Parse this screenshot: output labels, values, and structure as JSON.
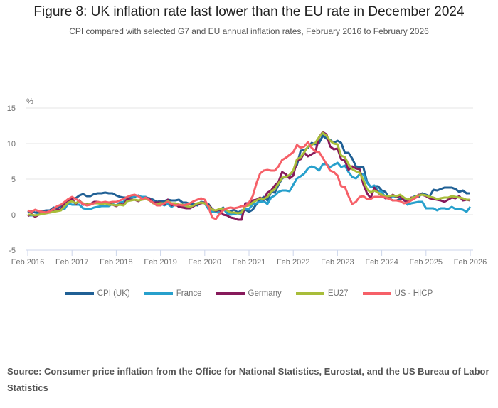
{
  "title": "Figure 8: UK inflation rate last lower than the EU rate in December 2024",
  "subtitle": "CPI compared with selected G7 and EU annual inflation rates, February 2016 to February 2026",
  "source": "Source: Consumer price inflation from the Office for National Statistics, Eurostat, and the US Bureau of Labor Statistics",
  "chart_data": {
    "type": "line",
    "ylabel": "%",
    "ylim": [
      -5,
      15
    ],
    "yticks": [
      15,
      10,
      5,
      0,
      -5
    ],
    "xticks": [
      "Feb 2016",
      "Feb 2017",
      "Feb 2018",
      "Feb 2019",
      "Feb 2020",
      "Feb 2021",
      "Feb 2022",
      "Feb 2023",
      "Feb 2024",
      "Feb 2025",
      "Feb 2026"
    ],
    "x_start": "Feb 2016",
    "x_frequency": "monthly",
    "grid": true,
    "legend": "bottom",
    "series": [
      {
        "name": "CPI (UK)",
        "color": "#206095",
        "values": [
          0.3,
          0.5,
          0.3,
          0.3,
          0.5,
          0.6,
          0.6,
          1.0,
          0.9,
          1.2,
          1.6,
          1.8,
          2.3,
          2.3,
          2.7,
          2.9,
          2.6,
          2.6,
          2.9,
          3.0,
          3.0,
          3.1,
          3.0,
          3.0,
          2.7,
          2.5,
          2.4,
          2.4,
          2.4,
          2.5,
          2.7,
          2.4,
          2.4,
          2.3,
          2.1,
          1.8,
          1.9,
          1.9,
          2.1,
          2.0,
          2.0,
          2.1,
          1.7,
          1.7,
          1.5,
          1.5,
          1.3,
          1.8,
          1.7,
          1.5,
          0.8,
          0.5,
          0.6,
          1.0,
          0.2,
          0.5,
          0.7,
          0.3,
          0.6,
          0.7,
          0.4,
          0.7,
          1.5,
          2.1,
          2.5,
          2.0,
          3.2,
          3.1,
          4.2,
          5.1,
          5.4,
          5.5,
          6.2,
          7.0,
          9.0,
          9.1,
          9.4,
          10.1,
          9.9,
          10.1,
          11.1,
          10.7,
          10.5,
          10.1,
          10.4,
          10.1,
          8.7,
          8.7,
          7.9,
          6.8,
          6.7,
          6.7,
          4.6,
          3.9,
          4.0,
          4.0,
          3.4,
          3.2,
          2.3,
          2.0,
          2.0,
          2.2,
          2.2,
          1.7,
          2.3,
          2.6,
          2.5,
          3.0,
          2.8,
          2.6,
          3.5,
          3.4,
          3.6,
          3.8,
          3.8,
          3.8,
          3.6,
          3.2,
          3.4,
          3.0,
          3.0
        ]
      },
      {
        "name": "France",
        "color": "#27a0cc",
        "values": [
          -0.1,
          -0.1,
          -0.1,
          0.1,
          0.3,
          0.4,
          0.4,
          0.5,
          0.5,
          0.7,
          0.8,
          1.6,
          1.4,
          1.4,
          1.4,
          0.9,
          0.8,
          0.8,
          1.0,
          1.1,
          1.2,
          1.2,
          1.2,
          1.5,
          1.3,
          1.7,
          1.8,
          2.3,
          2.3,
          2.6,
          2.6,
          2.5,
          2.5,
          2.2,
          1.9,
          1.4,
          1.6,
          1.3,
          1.5,
          1.1,
          1.4,
          1.3,
          1.3,
          1.1,
          0.9,
          1.2,
          1.6,
          1.7,
          1.6,
          0.8,
          0.4,
          0.4,
          0.2,
          0.9,
          0.2,
          0.0,
          0.1,
          0.2,
          0.0,
          0.8,
          0.8,
          1.4,
          1.6,
          1.8,
          1.9,
          1.5,
          2.4,
          2.7,
          3.2,
          3.4,
          3.4,
          3.3,
          4.2,
          5.1,
          5.4,
          5.8,
          6.5,
          6.8,
          6.6,
          6.2,
          7.1,
          7.1,
          6.7,
          7.0,
          7.3,
          6.7,
          6.9,
          6.0,
          5.3,
          5.1,
          5.7,
          5.7,
          4.5,
          3.9,
          4.1,
          3.4,
          3.2,
          2.4,
          2.4,
          2.6,
          2.5,
          2.7,
          2.2,
          1.4,
          1.6,
          1.7,
          1.8,
          1.8,
          0.9,
          0.9,
          0.9,
          0.6,
          0.9,
          0.9,
          0.8,
          1.1,
          0.8,
          0.8,
          0.7,
          0.4,
          1.1
        ]
      },
      {
        "name": "Germany",
        "color": "#871a5b",
        "values": [
          -0.2,
          0.1,
          -0.3,
          0.0,
          0.2,
          0.4,
          0.3,
          0.5,
          0.7,
          0.7,
          1.7,
          1.9,
          2.2,
          1.5,
          2.0,
          1.4,
          1.5,
          1.5,
          1.8,
          1.8,
          1.5,
          1.8,
          1.6,
          1.4,
          1.2,
          1.5,
          1.4,
          2.2,
          2.1,
          2.1,
          1.9,
          2.2,
          2.4,
          2.2,
          1.7,
          1.7,
          1.7,
          1.4,
          2.1,
          1.3,
          1.5,
          1.1,
          1.0,
          0.9,
          0.9,
          1.2,
          1.5,
          1.6,
          1.7,
          1.3,
          0.8,
          0.5,
          0.8,
          0.0,
          -0.1,
          -0.4,
          -0.5,
          -0.7,
          -0.7,
          1.6,
          1.6,
          2.0,
          2.1,
          2.4,
          2.1,
          3.1,
          3.4,
          4.1,
          4.6,
          6.0,
          5.7,
          5.1,
          5.5,
          7.6,
          7.8,
          8.7,
          8.2,
          8.5,
          8.8,
          10.9,
          11.6,
          11.3,
          9.6,
          9.2,
          9.3,
          7.8,
          7.6,
          6.3,
          6.8,
          6.5,
          6.4,
          4.3,
          3.0,
          2.3,
          3.8,
          3.1,
          2.7,
          2.3,
          2.4,
          2.8,
          2.5,
          2.6,
          2.0,
          1.8,
          2.4,
          2.4,
          2.8,
          2.8,
          2.6,
          2.3,
          2.2,
          2.1,
          2.0,
          1.8,
          2.1,
          2.4,
          2.3,
          2.6,
          2.0,
          2.1,
          2.0
        ]
      },
      {
        "name": "EU27",
        "color": "#a8bd3a",
        "values": [
          0.0,
          0.0,
          -0.1,
          0.0,
          0.1,
          0.2,
          0.3,
          0.4,
          0.5,
          0.6,
          1.2,
          1.7,
          1.9,
          1.6,
          1.9,
          1.6,
          1.4,
          1.5,
          1.6,
          1.6,
          1.5,
          1.6,
          1.4,
          1.4,
          1.3,
          1.4,
          1.3,
          1.9,
          2.0,
          2.1,
          2.0,
          2.1,
          2.2,
          2.0,
          1.6,
          1.5,
          1.6,
          1.6,
          1.9,
          1.6,
          1.6,
          1.4,
          1.4,
          1.2,
          1.1,
          1.3,
          1.6,
          1.7,
          1.6,
          1.2,
          0.7,
          0.6,
          0.8,
          0.9,
          0.6,
          0.3,
          0.3,
          0.2,
          0.3,
          1.2,
          1.3,
          1.7,
          2.0,
          2.3,
          2.2,
          2.5,
          3.2,
          3.6,
          4.4,
          5.2,
          5.3,
          5.6,
          6.2,
          7.8,
          8.1,
          8.8,
          9.6,
          9.8,
          10.1,
          10.9,
          11.5,
          11.1,
          10.4,
          10.0,
          9.9,
          8.3,
          8.1,
          7.1,
          6.4,
          6.1,
          5.9,
          4.9,
          3.6,
          3.1,
          3.4,
          3.1,
          2.8,
          2.6,
          2.6,
          2.7,
          2.6,
          2.8,
          2.4,
          2.1,
          2.3,
          2.5,
          2.7,
          2.8,
          2.7,
          2.5,
          2.4,
          2.2,
          2.3,
          2.4,
          2.4,
          2.6,
          2.5,
          2.4,
          2.3,
          2.1,
          2.1
        ]
      },
      {
        "name": "US - HICP",
        "color": "#f66068",
        "values": [
          0.6,
          0.4,
          0.7,
          0.5,
          0.4,
          0.3,
          0.5,
          0.8,
          1.2,
          1.4,
          1.8,
          2.2,
          2.5,
          2.2,
          1.9,
          1.5,
          1.3,
          1.4,
          1.6,
          1.8,
          1.7,
          1.8,
          1.7,
          1.8,
          1.8,
          2.0,
          2.2,
          2.5,
          2.7,
          2.8,
          2.6,
          2.2,
          2.4,
          2.0,
          1.7,
          1.3,
          1.3,
          1.6,
          1.8,
          1.5,
          1.3,
          1.4,
          1.3,
          1.4,
          1.6,
          1.9,
          2.1,
          2.3,
          2.1,
          1.1,
          -0.4,
          -0.6,
          0.1,
          0.6,
          0.9,
          1.0,
          0.9,
          1.0,
          1.2,
          1.2,
          1.7,
          2.6,
          4.4,
          5.8,
          6.2,
          6.3,
          6.2,
          6.2,
          6.8,
          7.7,
          8.0,
          8.4,
          8.8,
          9.8,
          9.4,
          9.6,
          10.2,
          9.4,
          8.9,
          8.8,
          8.0,
          7.1,
          6.2,
          6.0,
          5.5,
          4.0,
          3.9,
          2.6,
          1.5,
          1.8,
          2.5,
          2.6,
          2.2,
          2.2,
          2.5,
          2.5,
          2.5,
          2.4,
          2.2,
          2.0,
          2.0,
          1.9,
          1.6,
          1.7,
          2.0,
          2.3,
          2.6
        ]
      }
    ]
  }
}
